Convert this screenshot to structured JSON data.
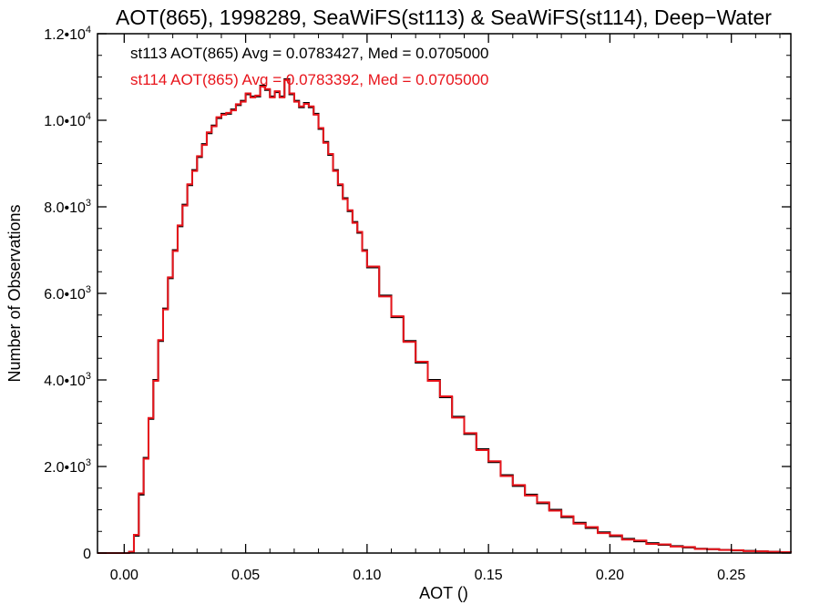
{
  "chart_data": {
    "type": "line",
    "title": "AOT(865), 1998289, SeaWiFS(st113) & SeaWiFS(st114), Deep−Water",
    "xlabel": "AOT ()",
    "ylabel": "Number of Observations",
    "xlim": [
      -0.011,
      0.2745
    ],
    "ylim": [
      0,
      12000
    ],
    "x_ticks": [
      0.0,
      0.05,
      0.1,
      0.15,
      0.2,
      0.25
    ],
    "x_tick_labels": [
      "0.00",
      "0.05",
      "0.10",
      "0.15",
      "0.20",
      "0.25"
    ],
    "y_ticks": [
      0,
      2000,
      4000,
      6000,
      8000,
      10000,
      12000
    ],
    "y_tick_labels": [
      {
        "mant": "0",
        "exp": ""
      },
      {
        "mant": "2.0•10",
        "exp": "3"
      },
      {
        "mant": "4.0•10",
        "exp": "3"
      },
      {
        "mant": "6.0•10",
        "exp": "3"
      },
      {
        "mant": "8.0•10",
        "exp": "3"
      },
      {
        "mant": "1.0•10",
        "exp": "4"
      },
      {
        "mant": "1.2•10",
        "exp": "4"
      }
    ],
    "grid": false,
    "bin_width": 0.001,
    "annotations": [
      "st113 AOT(865) Avg = 0.0783427, Med = 0.0705000",
      "st114 AOT(865) Avg = 0.0783392, Med = 0.0705000"
    ],
    "series_colors": [
      "#000000",
      "#e8141b"
    ],
    "series": [
      {
        "color": "#000000",
        "x": [
          -0.011,
          0.0,
          0.002,
          0.004,
          0.006,
          0.008,
          0.01,
          0.012,
          0.014,
          0.016,
          0.018,
          0.02,
          0.022,
          0.024,
          0.026,
          0.028,
          0.03,
          0.032,
          0.034,
          0.036,
          0.038,
          0.04,
          0.042,
          0.044,
          0.046,
          0.048,
          0.05,
          0.052,
          0.054,
          0.056,
          0.058,
          0.06,
          0.062,
          0.064,
          0.066,
          0.068,
          0.07,
          0.072,
          0.074,
          0.076,
          0.078,
          0.08,
          0.082,
          0.084,
          0.086,
          0.088,
          0.09,
          0.092,
          0.094,
          0.096,
          0.098,
          0.1,
          0.105,
          0.11,
          0.115,
          0.12,
          0.125,
          0.13,
          0.135,
          0.14,
          0.145,
          0.15,
          0.155,
          0.16,
          0.165,
          0.17,
          0.175,
          0.18,
          0.185,
          0.19,
          0.195,
          0.2,
          0.205,
          0.21,
          0.215,
          0.22,
          0.225,
          0.23,
          0.235,
          0.24,
          0.245,
          0.25,
          0.255,
          0.26,
          0.265,
          0.27,
          0.2745
        ],
        "y": [
          0,
          0,
          30,
          400,
          1350,
          2200,
          3100,
          4000,
          4900,
          5650,
          6350,
          7000,
          7550,
          8050,
          8500,
          8850,
          9150,
          9450,
          9700,
          9880,
          10050,
          10150,
          10150,
          10250,
          10350,
          10450,
          10600,
          10550,
          10550,
          10800,
          10700,
          10550,
          10650,
          10550,
          10950,
          10600,
          10450,
          10300,
          10400,
          10300,
          10150,
          9800,
          9500,
          9200,
          8850,
          8500,
          8200,
          7900,
          7650,
          7400,
          7000,
          6600,
          5950,
          5450,
          4900,
          4400,
          4000,
          3600,
          3150,
          2750,
          2400,
          2100,
          1800,
          1550,
          1350,
          1150,
          1000,
          830,
          700,
          580,
          480,
          390,
          330,
          270,
          230,
          190,
          160,
          130,
          100,
          90,
          75,
          60,
          50,
          40,
          30,
          20,
          10
        ]
      },
      {
        "color": "#e8141b",
        "x": [
          -0.011,
          0.0,
          0.002,
          0.004,
          0.006,
          0.008,
          0.01,
          0.012,
          0.014,
          0.016,
          0.018,
          0.02,
          0.022,
          0.024,
          0.026,
          0.028,
          0.03,
          0.032,
          0.034,
          0.036,
          0.038,
          0.04,
          0.042,
          0.044,
          0.046,
          0.048,
          0.05,
          0.052,
          0.054,
          0.056,
          0.058,
          0.06,
          0.062,
          0.064,
          0.066,
          0.068,
          0.07,
          0.072,
          0.074,
          0.076,
          0.078,
          0.08,
          0.082,
          0.084,
          0.086,
          0.088,
          0.09,
          0.092,
          0.094,
          0.096,
          0.098,
          0.1,
          0.105,
          0.11,
          0.115,
          0.12,
          0.125,
          0.13,
          0.135,
          0.14,
          0.145,
          0.15,
          0.155,
          0.16,
          0.165,
          0.17,
          0.175,
          0.18,
          0.185,
          0.19,
          0.195,
          0.2,
          0.205,
          0.21,
          0.215,
          0.22,
          0.225,
          0.23,
          0.235,
          0.24,
          0.245,
          0.25,
          0.255,
          0.26,
          0.265,
          0.27,
          0.2745
        ],
        "y": [
          0,
          0,
          30,
          420,
          1380,
          2180,
          3120,
          3980,
          4920,
          5630,
          6370,
          6980,
          7570,
          8030,
          8520,
          8830,
          9170,
          9430,
          9720,
          9860,
          10070,
          10130,
          10170,
          10230,
          10370,
          10430,
          10620,
          10530,
          10570,
          10780,
          10720,
          10530,
          10670,
          10530,
          10930,
          10620,
          10430,
          10320,
          10380,
          10320,
          10130,
          9820,
          9480,
          9220,
          8830,
          8520,
          8180,
          7920,
          7630,
          7420,
          6980,
          6620,
          5930,
          5470,
          4880,
          4420,
          3980,
          3620,
          3130,
          2770,
          2380,
          2120,
          1780,
          1570,
          1330,
          1170,
          980,
          850,
          680,
          600,
          460,
          410,
          310,
          290,
          210,
          200,
          150,
          140,
          95,
          90,
          70,
          65,
          45,
          40,
          28,
          22,
          10
        ]
      }
    ]
  }
}
